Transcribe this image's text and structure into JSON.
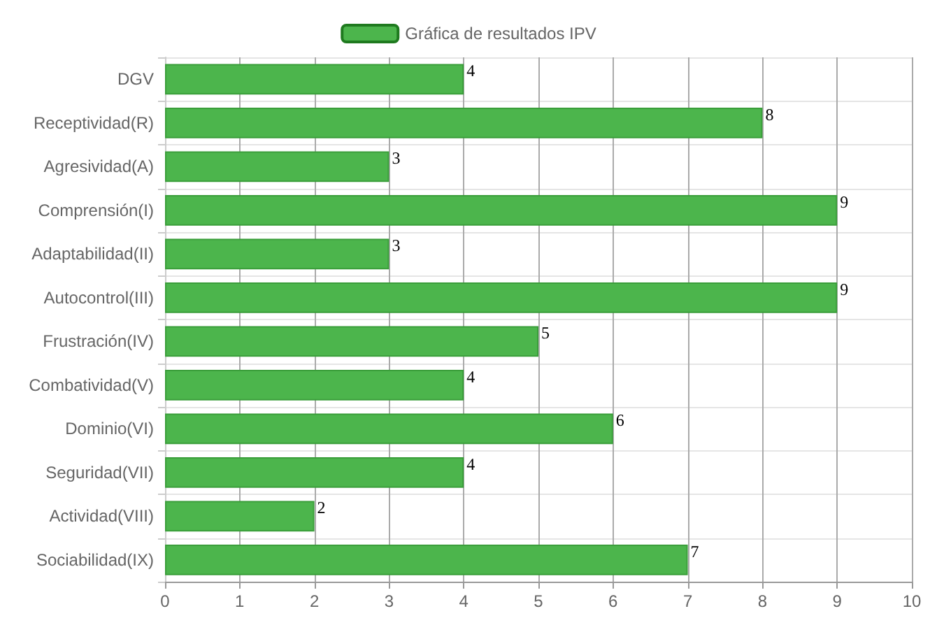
{
  "chart_data": {
    "type": "bar",
    "orientation": "horizontal",
    "categories": [
      "DGV",
      "Receptividad(R)",
      "Agresividad(A)",
      "Comprensión(I)",
      "Adaptabilidad(II)",
      "Autocontrol(III)",
      "Frustración(IV)",
      "Combatividad(V)",
      "Dominio(VI)",
      "Seguridad(VII)",
      "Actividad(VIII)",
      "Sociabilidad(IX)"
    ],
    "series": [
      {
        "name": "Gráfica de resultados IPV",
        "color": "#4cb54c",
        "values": [
          4,
          8,
          3,
          9,
          3,
          9,
          5,
          4,
          6,
          4,
          2,
          7
        ]
      }
    ],
    "xlim": [
      0,
      10
    ],
    "xticks": [
      0,
      1,
      2,
      3,
      4,
      5,
      6,
      7,
      8,
      9,
      10
    ],
    "grid": true,
    "legend": "top",
    "data_labels": true
  }
}
